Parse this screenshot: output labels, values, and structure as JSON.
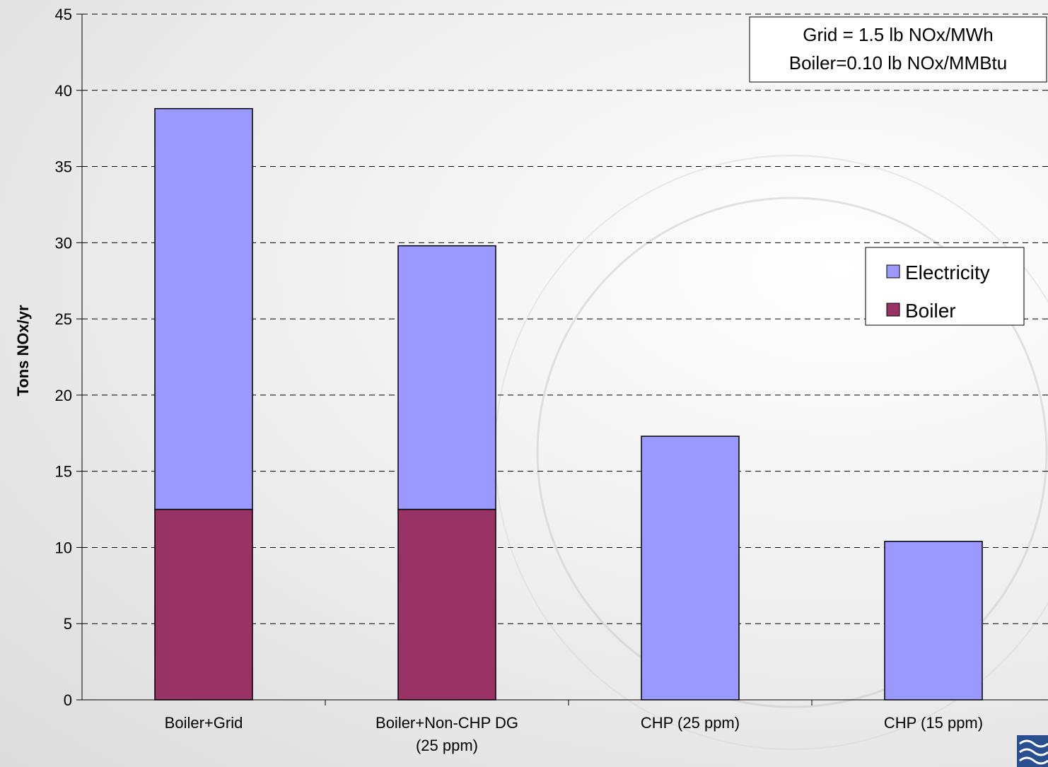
{
  "chart_data": {
    "type": "bar",
    "stacked": true,
    "categories": [
      "Boiler+Grid",
      "Boiler+Non-CHP DG (25 ppm)",
      "CHP (25 ppm)",
      "CHP (15 ppm)"
    ],
    "category_lines": [
      [
        "Boiler+Grid"
      ],
      [
        "Boiler+Non-CHP DG",
        "(25 ppm)"
      ],
      [
        "CHP (25 ppm)"
      ],
      [
        "CHP (15 ppm)"
      ]
    ],
    "series": [
      {
        "name": "Boiler",
        "color": "#993366",
        "values": [
          12.5,
          12.5,
          0,
          0
        ]
      },
      {
        "name": "Electricity",
        "color": "#9999ff",
        "values": [
          26.3,
          17.3,
          17.3,
          10.4
        ]
      }
    ],
    "ylabel": "Tons NOx/yr",
    "ylim": [
      0,
      45
    ],
    "yticks": [
      0,
      5,
      10,
      15,
      20,
      25,
      30,
      35,
      40,
      45
    ],
    "grid": true,
    "legend": {
      "placement": "right",
      "entries": [
        "Electricity",
        "Boiler"
      ]
    },
    "annotation": [
      "Grid = 1.5 lb NOx/MWh",
      "Boiler=0.10 lb NOx/MMBtu"
    ]
  }
}
